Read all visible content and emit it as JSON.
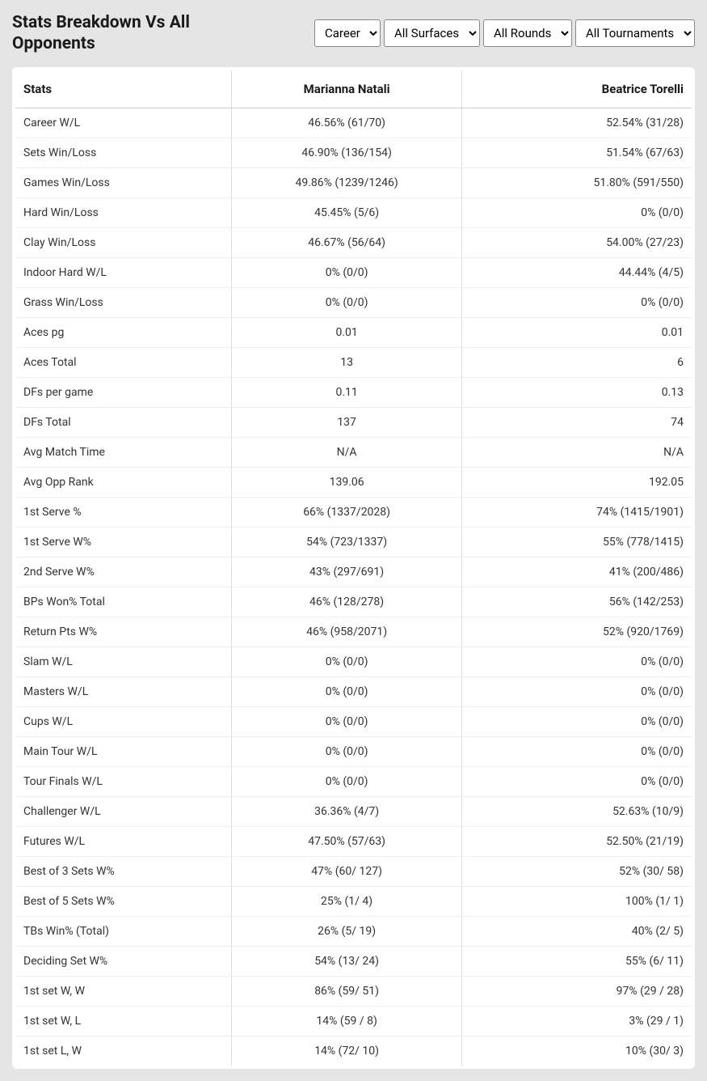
{
  "header": {
    "title": "Stats Breakdown Vs All Opponents"
  },
  "filters": {
    "timeframe": {
      "selected": "Career",
      "options": [
        "Career"
      ]
    },
    "surface": {
      "selected": "All Surfaces",
      "options": [
        "All Surfaces"
      ]
    },
    "round": {
      "selected": "All Rounds",
      "options": [
        "All Rounds"
      ]
    },
    "tournament": {
      "selected": "All Tournaments",
      "options": [
        "All Tournaments"
      ]
    }
  },
  "table": {
    "columns": [
      "Stats",
      "Marianna Natali",
      "Beatrice Torelli"
    ],
    "rows": [
      {
        "stat": "Career W/L",
        "p1": "46.56% (61/70)",
        "p2": "52.54% (31/28)"
      },
      {
        "stat": "Sets Win/Loss",
        "p1": "46.90% (136/154)",
        "p2": "51.54% (67/63)"
      },
      {
        "stat": "Games Win/Loss",
        "p1": "49.86% (1239/1246)",
        "p2": "51.80% (591/550)"
      },
      {
        "stat": "Hard Win/Loss",
        "p1": "45.45% (5/6)",
        "p2": "0% (0/0)"
      },
      {
        "stat": "Clay Win/Loss",
        "p1": "46.67% (56/64)",
        "p2": "54.00% (27/23)"
      },
      {
        "stat": "Indoor Hard W/L",
        "p1": "0% (0/0)",
        "p2": "44.44% (4/5)"
      },
      {
        "stat": "Grass Win/Loss",
        "p1": "0% (0/0)",
        "p2": "0% (0/0)"
      },
      {
        "stat": "Aces pg",
        "p1": "0.01",
        "p2": "0.01"
      },
      {
        "stat": "Aces Total",
        "p1": "13",
        "p2": "6"
      },
      {
        "stat": "DFs per game",
        "p1": "0.11",
        "p2": "0.13"
      },
      {
        "stat": "DFs Total",
        "p1": "137",
        "p2": "74"
      },
      {
        "stat": "Avg Match Time",
        "p1": "N/A",
        "p2": "N/A"
      },
      {
        "stat": "Avg Opp Rank",
        "p1": "139.06",
        "p2": "192.05"
      },
      {
        "stat": "1st Serve %",
        "p1": "66% (1337/2028)",
        "p2": "74% (1415/1901)"
      },
      {
        "stat": "1st Serve W%",
        "p1": "54% (723/1337)",
        "p2": "55% (778/1415)"
      },
      {
        "stat": "2nd Serve W%",
        "p1": "43% (297/691)",
        "p2": "41% (200/486)"
      },
      {
        "stat": "BPs Won% Total",
        "p1": "46% (128/278)",
        "p2": "56% (142/253)"
      },
      {
        "stat": "Return Pts W%",
        "p1": "46% (958/2071)",
        "p2": "52% (920/1769)"
      },
      {
        "stat": "Slam W/L",
        "p1": "0% (0/0)",
        "p2": "0% (0/0)"
      },
      {
        "stat": "Masters W/L",
        "p1": "0% (0/0)",
        "p2": "0% (0/0)"
      },
      {
        "stat": "Cups W/L",
        "p1": "0% (0/0)",
        "p2": "0% (0/0)"
      },
      {
        "stat": "Main Tour W/L",
        "p1": "0% (0/0)",
        "p2": "0% (0/0)"
      },
      {
        "stat": "Tour Finals W/L",
        "p1": "0% (0/0)",
        "p2": "0% (0/0)"
      },
      {
        "stat": "Challenger W/L",
        "p1": "36.36% (4/7)",
        "p2": "52.63% (10/9)"
      },
      {
        "stat": "Futures W/L",
        "p1": "47.50% (57/63)",
        "p2": "52.50% (21/19)"
      },
      {
        "stat": "Best of 3 Sets W%",
        "p1": "47% (60/ 127)",
        "p2": "52% (30/ 58)"
      },
      {
        "stat": "Best of 5 Sets W%",
        "p1": "25% (1/ 4)",
        "p2": "100% (1/ 1)"
      },
      {
        "stat": "TBs Win% (Total)",
        "p1": "26% (5/ 19)",
        "p2": "40% (2/ 5)"
      },
      {
        "stat": "Deciding Set W%",
        "p1": "54% (13/ 24)",
        "p2": "55% (6/ 11)"
      },
      {
        "stat": "1st set W, W",
        "p1": "86% (59/ 51)",
        "p2": "97% (29 / 28)"
      },
      {
        "stat": "1st set W, L",
        "p1": "14% (59 / 8)",
        "p2": "3% (29 / 1)"
      },
      {
        "stat": "1st set L, W",
        "p1": "14% (72/ 10)",
        "p2": "10% (30/ 3)"
      }
    ]
  }
}
